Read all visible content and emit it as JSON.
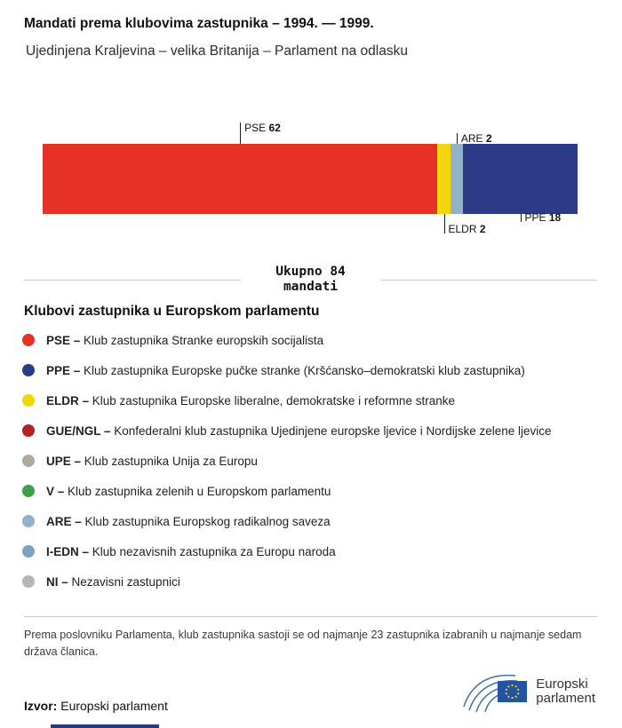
{
  "header": {
    "title": "Mandati prema klubovima zastupnika – 1994. — 1999.",
    "subtitle": "Ujedinjena Kraljevina – velika Britanija – Parlament na odlasku"
  },
  "chart_data": {
    "type": "bar",
    "variant": "stacked-horizontal",
    "title": "Mandati prema klubovima zastupnika – 1994. — 1999.",
    "subtitle": "Ujedinjena Kraljevina – velika Britanija – Parlament na odlasku",
    "total": 84,
    "total_label": "Ukupno 84 mandati",
    "categories": [
      "PSE",
      "ELDR",
      "ARE",
      "PPE"
    ],
    "values": [
      62,
      2,
      2,
      18
    ],
    "colors": [
      "#e63127",
      "#f2d60b",
      "#92b2c8",
      "#2b3b87"
    ],
    "label_sides": [
      "top",
      "bottom",
      "top",
      "bottom"
    ],
    "legend_position": "below"
  },
  "total": {
    "line1": "Ukupno 84",
    "line2": "mandati"
  },
  "legend": {
    "heading": "Klubovi zastupnika u Europskom parlamentu",
    "items": [
      {
        "abbr": "PSE –",
        "text": "Klub zastupnika Stranke europskih socijalista",
        "color": "#e63127"
      },
      {
        "abbr": "PPE –",
        "text": "Klub zastupnika Europske pučke stranke (Kršćansko–demokratski klub zastupnika)",
        "color": "#2b3b87"
      },
      {
        "abbr": "ELDR –",
        "text": "Klub zastupnika Europske liberalne, demokratske i reformne stranke",
        "color": "#f2d60b"
      },
      {
        "abbr": "GUE/NGL –",
        "text": "Konfederalni klub zastupnika Ujedinjene europske ljevice i Nordijske zelene ljevice",
        "color": "#b42025"
      },
      {
        "abbr": "UPE –",
        "text": "Klub zastupnika Unija za Europu",
        "color": "#b1a8a0"
      },
      {
        "abbr": "V –",
        "text": "Klub zastupnika zelenih u Europskom parlamentu",
        "color": "#3fa04c"
      },
      {
        "abbr": "ARE –",
        "text": "Klub zastupnika Europskog radikalnog saveza",
        "color": "#92b2c8"
      },
      {
        "abbr": "I-EDN –",
        "text": "Klub nezavisnih zastupnika za Europu naroda",
        "color": "#7aa4c2"
      },
      {
        "abbr": "NI –",
        "text": "Nezavisni zastupnici",
        "color": "#b6b6b6"
      }
    ]
  },
  "footnote": "Prema poslovniku Parlamenta, klub zastupnika sastoji se od najmanje 23 zastupnika izabranih u najmanje sedam država članica.",
  "source": {
    "label": "Izvor:",
    "text": "Europski parlament"
  },
  "logo": {
    "line1": "Europski",
    "line2": "parlament"
  }
}
